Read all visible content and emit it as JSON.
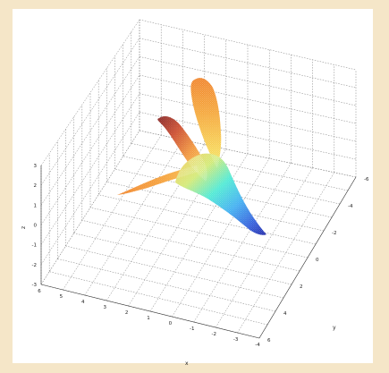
{
  "chart_data": {
    "type": "surface3d",
    "title": "",
    "xlabel": "x",
    "ylabel": "y",
    "zlabel": "z",
    "grid": true,
    "colormap": "jet",
    "xlim": [
      -4,
      6
    ],
    "ylim": [
      -6,
      6
    ],
    "zlim": [
      -3,
      3
    ],
    "xticks": [
      "6",
      "5",
      "4",
      "3",
      "2",
      "1",
      "0",
      "-1",
      "-2",
      "-3",
      "-4"
    ],
    "yticks": [
      "-6",
      "-4",
      "-2",
      "0",
      "2",
      "4",
      "6"
    ],
    "zticks": [
      "3",
      "2",
      "1",
      "0",
      "-1",
      "-2",
      "-3"
    ],
    "description_shape": "bird-like 3D surface mesh (wings and tail)"
  }
}
